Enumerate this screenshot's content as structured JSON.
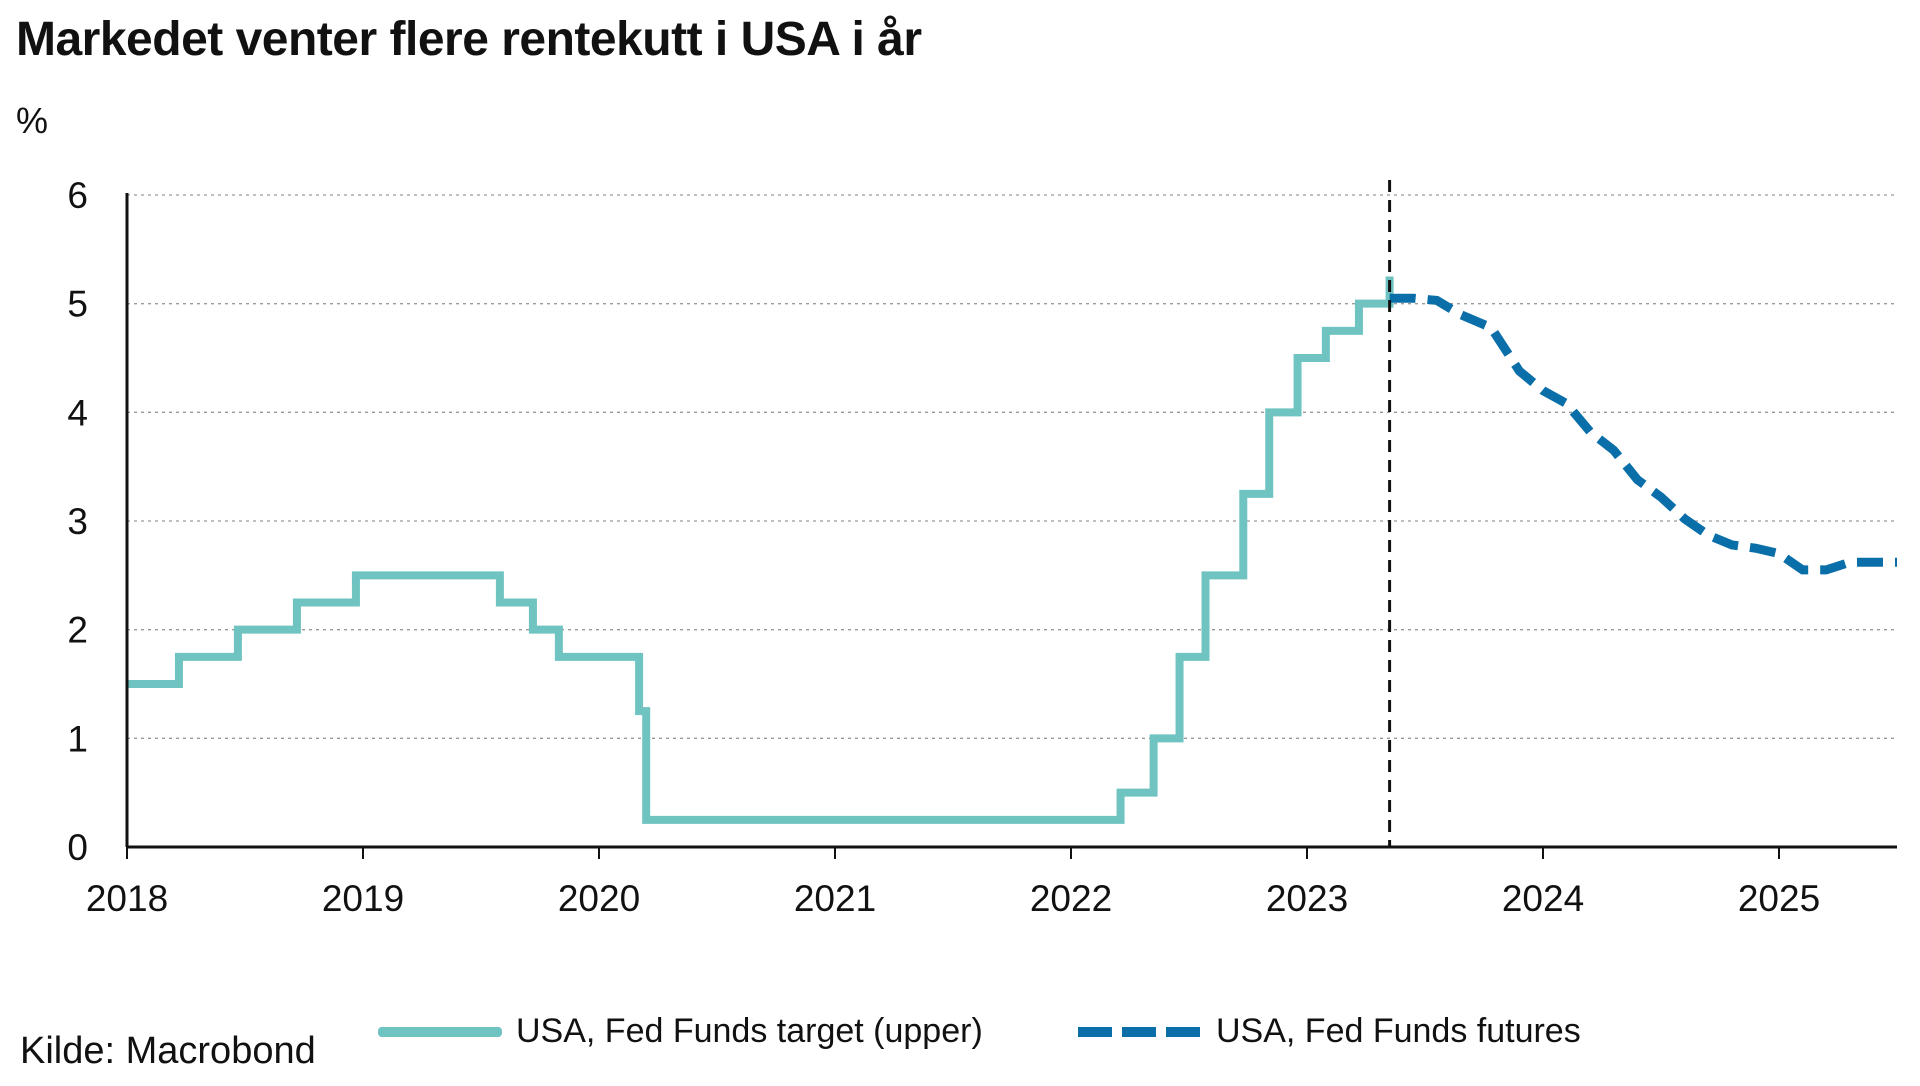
{
  "header": {
    "title": "Markedet venter flere rentekutt i USA i år",
    "unit": "%"
  },
  "footer": {
    "source": "Kilde: Macrobond"
  },
  "legend": [
    {
      "label": "USA, Fed Funds target (upper)",
      "color": "#6fc4c2",
      "style": "solid"
    },
    {
      "label": "USA, Fed Funds futures",
      "color": "#0a6fa9",
      "style": "dashed"
    }
  ],
  "chart_data": {
    "type": "line",
    "title": "Markedet venter flere rentekutt i USA i år",
    "ylabel": "%",
    "xlim": [
      2018.0,
      2025.5
    ],
    "ylim": [
      0,
      6
    ],
    "yticks": [
      0,
      1,
      2,
      3,
      4,
      5,
      6
    ],
    "xticks": [
      2018,
      2019,
      2020,
      2021,
      2022,
      2023,
      2024,
      2025
    ],
    "grid": "horizontal-dotted",
    "legend_position": "bottom",
    "vertical_marker": {
      "x": 2023.35,
      "style": "dashed",
      "color": "#111111"
    },
    "series": [
      {
        "name": "USA, Fed Funds target (upper)",
        "color": "#6fc4c2",
        "style": "step",
        "points": [
          [
            2018.0,
            1.5
          ],
          [
            2018.22,
            1.75
          ],
          [
            2018.47,
            2.0
          ],
          [
            2018.72,
            2.25
          ],
          [
            2018.97,
            2.5
          ],
          [
            2019.58,
            2.25
          ],
          [
            2019.72,
            2.0
          ],
          [
            2019.83,
            1.75
          ],
          [
            2020.17,
            1.25
          ],
          [
            2020.2,
            0.25
          ],
          [
            2022.21,
            0.5
          ],
          [
            2022.35,
            1.0
          ],
          [
            2022.46,
            1.75
          ],
          [
            2022.57,
            2.5
          ],
          [
            2022.73,
            3.25
          ],
          [
            2022.84,
            4.0
          ],
          [
            2022.96,
            4.5
          ],
          [
            2023.08,
            4.75
          ],
          [
            2023.22,
            5.0
          ],
          [
            2023.35,
            5.25
          ]
        ]
      },
      {
        "name": "USA, Fed Funds futures",
        "color": "#0a6fa9",
        "style": "dashed",
        "points": [
          [
            2023.35,
            5.05
          ],
          [
            2023.45,
            5.05
          ],
          [
            2023.55,
            5.03
          ],
          [
            2023.65,
            4.9
          ],
          [
            2023.78,
            4.78
          ],
          [
            2023.9,
            4.38
          ],
          [
            2024.0,
            4.2
          ],
          [
            2024.1,
            4.08
          ],
          [
            2024.2,
            3.82
          ],
          [
            2024.3,
            3.65
          ],
          [
            2024.4,
            3.38
          ],
          [
            2024.5,
            3.22
          ],
          [
            2024.6,
            3.02
          ],
          [
            2024.7,
            2.87
          ],
          [
            2024.8,
            2.78
          ],
          [
            2024.9,
            2.75
          ],
          [
            2025.0,
            2.7
          ],
          [
            2025.1,
            2.55
          ],
          [
            2025.2,
            2.55
          ],
          [
            2025.3,
            2.62
          ],
          [
            2025.4,
            2.62
          ],
          [
            2025.5,
            2.62
          ]
        ]
      }
    ]
  }
}
